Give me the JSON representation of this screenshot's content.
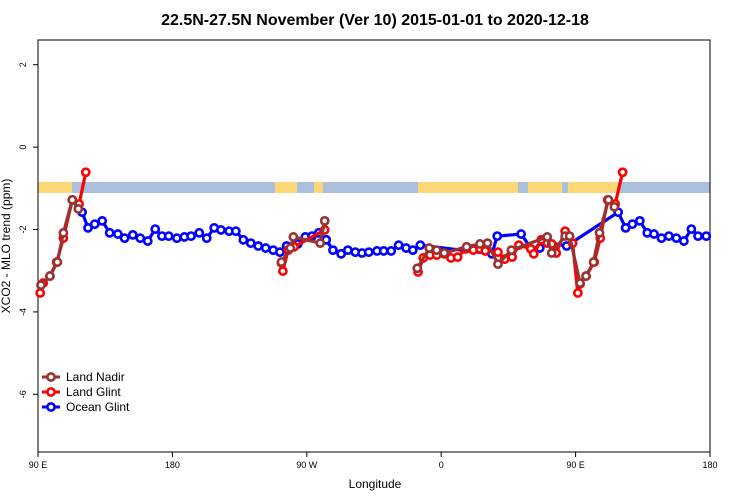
{
  "chart_data": {
    "type": "line",
    "title": "22.5N-27.5N November (Ver 10)   2015-01-01 to 2020-12-18",
    "x_label": "Longitude",
    "y_label": "XCO2 - MLO trend (ppm)",
    "xlim": [
      90,
      540
    ],
    "ylim": [
      -7.4,
      2.6
    ],
    "xticks": [
      {
        "value": 90,
        "label": "90 E"
      },
      180,
      {
        "value": 270,
        "label": "90 W"
      },
      {
        "value": 360,
        "label": "0"
      },
      {
        "value": 450,
        "label": "90 E"
      },
      {
        "value": 540,
        "label": "180"
      }
    ],
    "yticks": [
      -6,
      -4,
      -2,
      0,
      2
    ],
    "legend": "bottom-left",
    "series": [
      {
        "name": "Land Nadir",
        "color": "#9a3232",
        "x": [
          92,
          98,
          103,
          107,
          113,
          117,
          null,
          253,
          259,
          261,
          279,
          282,
          null,
          344,
          352,
          357,
          362,
          377,
          386,
          391,
          398,
          407,
          431,
          434,
          443,
          446,
          453,
          457,
          462,
          466,
          472,
          476
        ],
        "values": [
          -3.35,
          -3.13,
          -2.79,
          -2.08,
          -1.28,
          -1.5,
          null,
          -2.79,
          -2.45,
          -2.18,
          -2.33,
          -1.79,
          null,
          -2.94,
          -2.45,
          -2.5,
          -2.57,
          -2.42,
          -2.35,
          -2.33,
          -2.84,
          -2.5,
          -2.18,
          -2.57,
          -2.16,
          -2.16,
          -3.3,
          -3.13,
          -2.79,
          -2.08,
          -1.28,
          -1.45
        ]
      },
      {
        "name": "Land Glint",
        "color": "#ff0000",
        "x": [
          91.5,
          93.5,
          98,
          102.5,
          107,
          113,
          117.5,
          122,
          null,
          253,
          254,
          257.5,
          261.5,
          282,
          null,
          344.5,
          348,
          352.5,
          357,
          362,
          366.5,
          371,
          376.5,
          381.5,
          386,
          389.5,
          398,
          402.5,
          407.5,
          412,
          420,
          422,
          427,
          431,
          434,
          437,
          443,
          448,
          451.5,
          453,
          457,
          462.5,
          466.5,
          471.5,
          476.5,
          481.5
        ],
        "values": [
          -3.54,
          -3.3,
          -3.13,
          -2.79,
          -2.21,
          -1.28,
          -1.38,
          -0.61,
          null,
          -2.81,
          -3.01,
          -2.5,
          -2.42,
          -2.01,
          null,
          -3.03,
          -2.69,
          -2.62,
          -2.62,
          -2.59,
          -2.69,
          -2.67,
          -2.47,
          -2.5,
          -2.47,
          -2.52,
          -2.55,
          -2.72,
          -2.67,
          -2.38,
          -2.47,
          -2.59,
          -2.25,
          -2.33,
          -2.35,
          -2.57,
          -2.04,
          -2.33,
          -3.54,
          -3.32,
          -3.13,
          -2.79,
          -2.21,
          -1.28,
          -1.38,
          -0.61
        ]
      },
      {
        "name": "Ocean Glint",
        "color": "#0000ff",
        "x": [
          119.5,
          123.5,
          128,
          133,
          138,
          143.5,
          148,
          153.5,
          158.5,
          163.5,
          168.5,
          173,
          177.5,
          183,
          188,
          192.5,
          198,
          203,
          208,
          212.5,
          218,
          222.5,
          227.5,
          232.5,
          237.5,
          242.5,
          247.5,
          252,
          256.5,
          264,
          269,
          273.5,
          278,
          283,
          287.5,
          293,
          297.5,
          302.5,
          307,
          311.5,
          317,
          321.5,
          326.5,
          331.5,
          336.5,
          341,
          346,
          394,
          397.5,
          413.5,
          421,
          426,
          429.5,
          444,
          478.5,
          483.5,
          488,
          493,
          498,
          502.5,
          507.5,
          512.5,
          517.5,
          522.5,
          527.5,
          532,
          537.5
        ],
        "values": [
          -1.58,
          -1.96,
          -1.87,
          -1.79,
          -2.08,
          -2.11,
          -2.21,
          -2.13,
          -2.21,
          -2.28,
          -1.99,
          -2.16,
          -2.16,
          -2.21,
          -2.18,
          -2.16,
          -2.08,
          -2.21,
          -1.96,
          -2.01,
          -2.04,
          -2.04,
          -2.25,
          -2.33,
          -2.4,
          -2.45,
          -2.5,
          -2.55,
          -2.4,
          -2.35,
          -2.18,
          -2.16,
          -2.08,
          -2.25,
          -2.5,
          -2.59,
          -2.5,
          -2.55,
          -2.57,
          -2.55,
          -2.52,
          -2.52,
          -2.52,
          -2.38,
          -2.45,
          -2.5,
          -2.38,
          -2.59,
          -2.16,
          -2.11,
          -2.5,
          -2.45,
          -2.3,
          -2.4,
          -1.58,
          -1.96,
          -1.87,
          -1.79,
          -2.08,
          -2.11,
          -2.21,
          -2.16,
          -2.21,
          -2.28,
          -1.99,
          -2.16,
          -2.16
        ]
      }
    ]
  }
}
